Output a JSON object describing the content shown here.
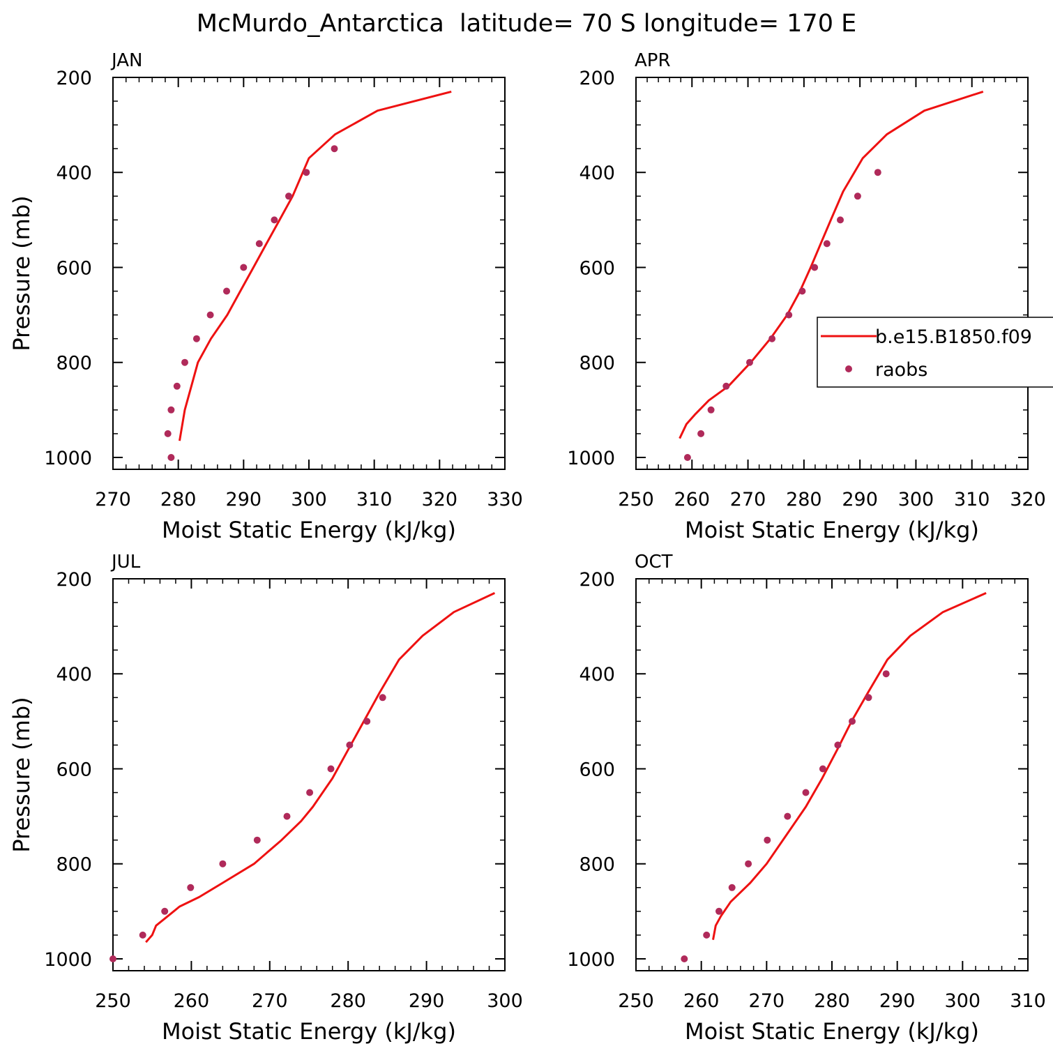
{
  "figure_title": "McMurdo_Antarctica  latitude= 70 S longitude= 170 E",
  "colors": {
    "model_line": "#ee1111",
    "obs_points": "#b02a5a",
    "axes": "#000000"
  },
  "legend": {
    "model_label": "b.e15.B1850.f09",
    "obs_label": "raobs"
  },
  "chart_data": [
    {
      "type": "line",
      "panel_label": "JAN",
      "xlabel": "Moist Static Energy (kJ/kg)",
      "ylabel": "Pressure (mb)",
      "xlim": [
        270,
        330
      ],
      "ylim": [
        1025,
        200
      ],
      "xticks": [
        270,
        280,
        290,
        300,
        310,
        320,
        330
      ],
      "yticks": [
        200,
        400,
        600,
        800,
        1000
      ],
      "legend_position": "none",
      "model_line": [
        {
          "x": 280.2,
          "y": 965
        },
        {
          "x": 281,
          "y": 900
        },
        {
          "x": 282,
          "y": 850
        },
        {
          "x": 283,
          "y": 800
        },
        {
          "x": 285,
          "y": 750
        },
        {
          "x": 287.5,
          "y": 700
        },
        {
          "x": 289.5,
          "y": 650
        },
        {
          "x": 291.5,
          "y": 600
        },
        {
          "x": 293.5,
          "y": 550
        },
        {
          "x": 295.5,
          "y": 500
        },
        {
          "x": 297.5,
          "y": 450
        },
        {
          "x": 300,
          "y": 370
        },
        {
          "x": 304,
          "y": 320
        },
        {
          "x": 310.5,
          "y": 270
        },
        {
          "x": 321.8,
          "y": 230
        }
      ],
      "obs_points": [
        {
          "x": 278.9,
          "y": 1000
        },
        {
          "x": 278.4,
          "y": 950
        },
        {
          "x": 278.9,
          "y": 900
        },
        {
          "x": 279.8,
          "y": 850
        },
        {
          "x": 281,
          "y": 800
        },
        {
          "x": 282.8,
          "y": 750
        },
        {
          "x": 284.9,
          "y": 700
        },
        {
          "x": 287.4,
          "y": 650
        },
        {
          "x": 290,
          "y": 600
        },
        {
          "x": 292.4,
          "y": 550
        },
        {
          "x": 294.7,
          "y": 500
        },
        {
          "x": 296.9,
          "y": 450
        },
        {
          "x": 299.6,
          "y": 400
        },
        {
          "x": 303.9,
          "y": 350
        }
      ]
    },
    {
      "type": "line",
      "panel_label": "APR",
      "xlabel": "Moist Static Energy (kJ/kg)",
      "ylabel": "",
      "xlim": [
        250,
        320
      ],
      "ylim": [
        1025,
        200
      ],
      "xticks": [
        250,
        260,
        270,
        280,
        290,
        300,
        310,
        320
      ],
      "yticks": [
        200,
        400,
        600,
        800,
        1000
      ],
      "legend_position": "right-middle",
      "model_line": [
        {
          "x": 257.8,
          "y": 960
        },
        {
          "x": 259,
          "y": 930
        },
        {
          "x": 260.5,
          "y": 910
        },
        {
          "x": 263,
          "y": 880
        },
        {
          "x": 266.5,
          "y": 850
        },
        {
          "x": 270.5,
          "y": 800
        },
        {
          "x": 274,
          "y": 750
        },
        {
          "x": 277,
          "y": 700
        },
        {
          "x": 279.3,
          "y": 650
        },
        {
          "x": 281.2,
          "y": 600
        },
        {
          "x": 283,
          "y": 550
        },
        {
          "x": 284.8,
          "y": 500
        },
        {
          "x": 287,
          "y": 440
        },
        {
          "x": 290.5,
          "y": 370
        },
        {
          "x": 294.8,
          "y": 320
        },
        {
          "x": 301.5,
          "y": 270
        },
        {
          "x": 312,
          "y": 230
        }
      ],
      "obs_points": [
        {
          "x": 259.2,
          "y": 1000
        },
        {
          "x": 261.6,
          "y": 950
        },
        {
          "x": 263.4,
          "y": 900
        },
        {
          "x": 266.1,
          "y": 850
        },
        {
          "x": 270.3,
          "y": 800
        },
        {
          "x": 274.3,
          "y": 750
        },
        {
          "x": 277.3,
          "y": 700
        },
        {
          "x": 279.7,
          "y": 650
        },
        {
          "x": 281.9,
          "y": 600
        },
        {
          "x": 284.1,
          "y": 550
        },
        {
          "x": 286.5,
          "y": 500
        },
        {
          "x": 289.6,
          "y": 450
        },
        {
          "x": 293.2,
          "y": 400
        }
      ]
    },
    {
      "type": "line",
      "panel_label": "JUL",
      "xlabel": "Moist Static Energy (kJ/kg)",
      "ylabel": "Pressure (mb)",
      "xlim": [
        250,
        300
      ],
      "ylim": [
        1025,
        200
      ],
      "xticks": [
        250,
        260,
        270,
        280,
        290,
        300
      ],
      "yticks": [
        200,
        400,
        600,
        800,
        1000
      ],
      "legend_position": "none",
      "model_line": [
        {
          "x": 254.2,
          "y": 965
        },
        {
          "x": 255,
          "y": 950
        },
        {
          "x": 255.5,
          "y": 930
        },
        {
          "x": 257,
          "y": 910
        },
        {
          "x": 258.5,
          "y": 890
        },
        {
          "x": 261,
          "y": 870
        },
        {
          "x": 264,
          "y": 840
        },
        {
          "x": 268,
          "y": 800
        },
        {
          "x": 271.5,
          "y": 750
        },
        {
          "x": 274,
          "y": 710
        },
        {
          "x": 275.5,
          "y": 680
        },
        {
          "x": 278,
          "y": 620
        },
        {
          "x": 280,
          "y": 560
        },
        {
          "x": 282,
          "y": 500
        },
        {
          "x": 284,
          "y": 440
        },
        {
          "x": 286.5,
          "y": 370
        },
        {
          "x": 289.5,
          "y": 320
        },
        {
          "x": 293.5,
          "y": 270
        },
        {
          "x": 298.7,
          "y": 230
        }
      ],
      "obs_points": [
        {
          "x": 250,
          "y": 1000
        },
        {
          "x": 253.8,
          "y": 950
        },
        {
          "x": 256.6,
          "y": 900
        },
        {
          "x": 259.9,
          "y": 850
        },
        {
          "x": 264,
          "y": 800
        },
        {
          "x": 268.4,
          "y": 750
        },
        {
          "x": 272.2,
          "y": 700
        },
        {
          "x": 275.1,
          "y": 650
        },
        {
          "x": 277.8,
          "y": 600
        },
        {
          "x": 280.2,
          "y": 550
        },
        {
          "x": 282.4,
          "y": 500
        },
        {
          "x": 284.4,
          "y": 450
        }
      ]
    },
    {
      "type": "line",
      "panel_label": "OCT",
      "xlabel": "Moist Static Energy (kJ/kg)",
      "ylabel": "",
      "xlim": [
        250,
        310
      ],
      "ylim": [
        1025,
        200
      ],
      "xticks": [
        250,
        260,
        270,
        280,
        290,
        300,
        310
      ],
      "yticks": [
        200,
        400,
        600,
        800,
        1000
      ],
      "legend_position": "none",
      "model_line": [
        {
          "x": 261.8,
          "y": 960
        },
        {
          "x": 262.2,
          "y": 930
        },
        {
          "x": 263,
          "y": 910
        },
        {
          "x": 264.5,
          "y": 880
        },
        {
          "x": 267.5,
          "y": 840
        },
        {
          "x": 270,
          "y": 800
        },
        {
          "x": 273,
          "y": 740
        },
        {
          "x": 276,
          "y": 680
        },
        {
          "x": 278.5,
          "y": 620
        },
        {
          "x": 280.8,
          "y": 560
        },
        {
          "x": 283,
          "y": 500
        },
        {
          "x": 285.5,
          "y": 440
        },
        {
          "x": 288.5,
          "y": 370
        },
        {
          "x": 292,
          "y": 320
        },
        {
          "x": 297,
          "y": 270
        },
        {
          "x": 303.6,
          "y": 230
        }
      ],
      "obs_points": [
        {
          "x": 257.4,
          "y": 1000
        },
        {
          "x": 260.8,
          "y": 950
        },
        {
          "x": 262.7,
          "y": 900
        },
        {
          "x": 264.7,
          "y": 850
        },
        {
          "x": 267.2,
          "y": 800
        },
        {
          "x": 270.1,
          "y": 750
        },
        {
          "x": 273.2,
          "y": 700
        },
        {
          "x": 276,
          "y": 650
        },
        {
          "x": 278.6,
          "y": 600
        },
        {
          "x": 280.9,
          "y": 550
        },
        {
          "x": 283.1,
          "y": 500
        },
        {
          "x": 285.6,
          "y": 450
        },
        {
          "x": 288.3,
          "y": 400
        }
      ]
    }
  ]
}
